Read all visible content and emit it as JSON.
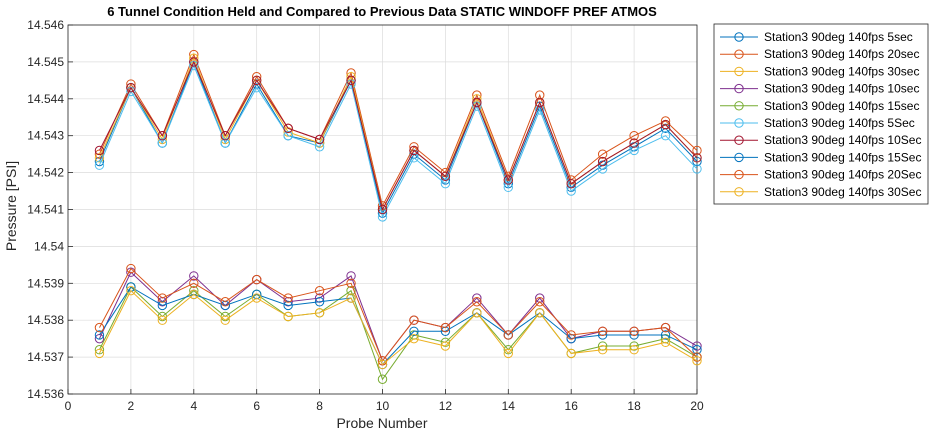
{
  "colors": {
    "background": "#ffffff",
    "grid": "#dcdcdc",
    "axis": "#262626",
    "series": [
      "#0072BD",
      "#D95319",
      "#EDB120",
      "#7E2F8E",
      "#77AC30",
      "#4DBEEE",
      "#A2142F",
      "#0072BD",
      "#D95319",
      "#EDB120"
    ]
  },
  "chart_data": {
    "type": "line",
    "title": "6 Tunnel Condition Held and Compared to Previous Data STATIC WINDOFF PREF ATMOS",
    "xlabel": "Probe Number",
    "ylabel": "Pressure [PSI]",
    "xlim": [
      0,
      20
    ],
    "ylim": [
      14.536,
      14.546
    ],
    "xticks": [
      0,
      2,
      4,
      6,
      8,
      10,
      12,
      14,
      16,
      18,
      20
    ],
    "yticks": [
      14.536,
      14.537,
      14.538,
      14.539,
      14.54,
      14.541,
      14.542,
      14.543,
      14.544,
      14.545,
      14.546
    ],
    "xtick_labels": [
      "0",
      "2",
      "4",
      "6",
      "8",
      "10",
      "12",
      "14",
      "16",
      "18",
      "20"
    ],
    "ytick_labels": [
      "14.536",
      "14.537",
      "14.538",
      "14.539",
      "14.54",
      "14.541",
      "14.542",
      "14.543",
      "14.544",
      "14.545",
      "14.546"
    ],
    "grid": true,
    "marker": "circle",
    "legend_position": "outside-right-top",
    "x": [
      1,
      2,
      3,
      4,
      5,
      6,
      7,
      8,
      9,
      10,
      11,
      12,
      13,
      14,
      15,
      16,
      17,
      18,
      19,
      20
    ],
    "series": [
      {
        "name": "Station3 90deg 140fps 5sec",
        "color": "#0072BD",
        "values": [
          14.5423,
          14.5443,
          14.5428,
          14.545,
          14.5428,
          14.5444,
          14.543,
          14.5428,
          14.5445,
          14.5409,
          14.5425,
          14.5418,
          14.5439,
          14.5417,
          14.5438,
          14.5416,
          14.5422,
          14.5427,
          14.5432,
          14.5423
        ]
      },
      {
        "name": "Station3 90deg 140fps 20sec",
        "color": "#D95319",
        "values": [
          14.5425,
          14.5444,
          14.543,
          14.5452,
          14.543,
          14.5446,
          14.5432,
          14.5429,
          14.5447,
          14.5411,
          14.5427,
          14.542,
          14.5441,
          14.5419,
          14.5441,
          14.5418,
          14.5425,
          14.543,
          14.5434,
          14.5426
        ]
      },
      {
        "name": "Station3 90deg 140fps 30sec",
        "color": "#EDB120",
        "values": [
          14.5424,
          14.5443,
          14.5429,
          14.5451,
          14.5429,
          14.5445,
          14.5431,
          14.5428,
          14.5446,
          14.541,
          14.5426,
          14.5419,
          14.544,
          14.5418,
          14.5439,
          14.5417,
          14.5423,
          14.5428,
          14.5433,
          14.5424
        ]
      },
      {
        "name": "Station3 90deg 140fps 10sec",
        "color": "#7E2F8E",
        "values": [
          14.5375,
          14.5393,
          14.5385,
          14.5392,
          14.5384,
          14.5391,
          14.5385,
          14.5386,
          14.5392,
          14.5369,
          14.538,
          14.5378,
          14.5386,
          14.5376,
          14.5386,
          14.5375,
          14.5377,
          14.5377,
          14.5378,
          14.5373
        ]
      },
      {
        "name": "Station3 90deg 140fps 15sec",
        "color": "#77AC30",
        "values": [
          14.5372,
          14.5389,
          14.5381,
          14.5388,
          14.5381,
          14.5387,
          14.5381,
          14.5382,
          14.5388,
          14.5364,
          14.5376,
          14.5374,
          14.5382,
          14.5372,
          14.5382,
          14.5371,
          14.5373,
          14.5373,
          14.5375,
          14.537
        ]
      },
      {
        "name": "Station3 90deg 140fps 5Sec",
        "color": "#4DBEEE",
        "values": [
          14.5422,
          14.5442,
          14.5428,
          14.5449,
          14.5428,
          14.5443,
          14.543,
          14.5427,
          14.5444,
          14.5408,
          14.5424,
          14.5417,
          14.5438,
          14.5416,
          14.5437,
          14.5415,
          14.5421,
          14.5426,
          14.543,
          14.5421
        ]
      },
      {
        "name": "Station3 90deg 140fps 10Sec",
        "color": "#A2142F",
        "values": [
          14.5426,
          14.5443,
          14.543,
          14.545,
          14.543,
          14.5445,
          14.5432,
          14.5429,
          14.5445,
          14.541,
          14.5426,
          14.5419,
          14.5439,
          14.5418,
          14.5439,
          14.5417,
          14.5423,
          14.5428,
          14.5433,
          14.5424
        ]
      },
      {
        "name": "Station3 90deg 140fps 15Sec",
        "color": "#0072BD",
        "values": [
          14.5376,
          14.5389,
          14.5384,
          14.5387,
          14.5384,
          14.5387,
          14.5384,
          14.5385,
          14.5386,
          14.5368,
          14.5377,
          14.5377,
          14.5382,
          14.5376,
          14.5382,
          14.5375,
          14.5376,
          14.5376,
          14.5376,
          14.5372
        ]
      },
      {
        "name": "Station3 90deg 140fps 20Sec",
        "color": "#D95319",
        "values": [
          14.5378,
          14.5394,
          14.5386,
          14.539,
          14.5385,
          14.5391,
          14.5386,
          14.5388,
          14.539,
          14.5369,
          14.538,
          14.5378,
          14.5385,
          14.5376,
          14.5385,
          14.5376,
          14.5377,
          14.5377,
          14.5378,
          14.537
        ]
      },
      {
        "name": "Station3 90deg 140fps 30Sec",
        "color": "#EDB120",
        "values": [
          14.5371,
          14.5388,
          14.538,
          14.5387,
          14.538,
          14.5386,
          14.5381,
          14.5382,
          14.5386,
          14.5368,
          14.5375,
          14.5373,
          14.5382,
          14.5371,
          14.5382,
          14.5371,
          14.5372,
          14.5372,
          14.5374,
          14.5369
        ]
      }
    ]
  }
}
